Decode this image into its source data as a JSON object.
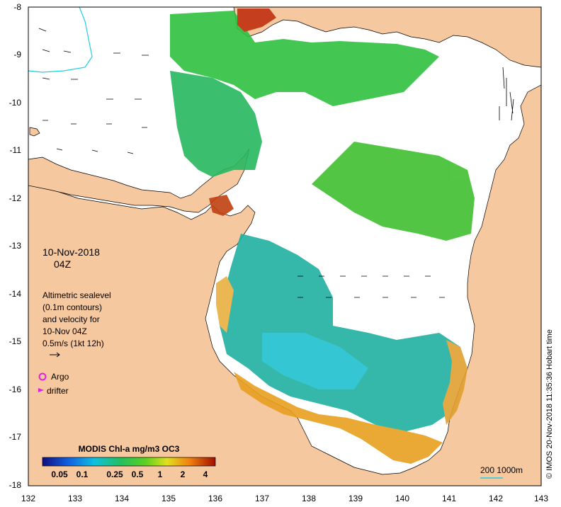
{
  "map": {
    "axis": {
      "x_ticks": [
        "132",
        "133",
        "134",
        "135",
        "136",
        "137",
        "138",
        "139",
        "140",
        "141",
        "142",
        "143"
      ],
      "y_ticks": [
        "-8",
        "-9",
        "-10",
        "-11",
        "-12",
        "-13",
        "-14",
        "-15",
        "-16",
        "-17",
        "-18"
      ]
    },
    "date": "10-Nov-2018",
    "time": "04Z",
    "notes": [
      "Altimetric sealevel",
      "(0.1m contours)",
      "and velocity for",
      "10-Nov 04Z",
      "0.5m/s (1kt 12h)"
    ],
    "legend": {
      "argo": "Argo",
      "drifter": "drifter",
      "argo_color": "#e020e0",
      "drifter_color": "#e020e0"
    },
    "colorbar": {
      "title": "MODIS Chl-a mg/m3 OC3",
      "ticks": [
        "0.05",
        "0.1",
        "0.25",
        "0.5",
        "1",
        "2",
        "4"
      ]
    },
    "scale_label": "200  1000m",
    "credit": "© IMOS 20-Nov-2018 11:35:36 Hobart time",
    "colors": {
      "land": "#f5c8a0",
      "water": "#ffffff",
      "chl_low": "#1e2a9a",
      "chl_mid": "#20c040",
      "chl_high": "#b01e00"
    }
  }
}
